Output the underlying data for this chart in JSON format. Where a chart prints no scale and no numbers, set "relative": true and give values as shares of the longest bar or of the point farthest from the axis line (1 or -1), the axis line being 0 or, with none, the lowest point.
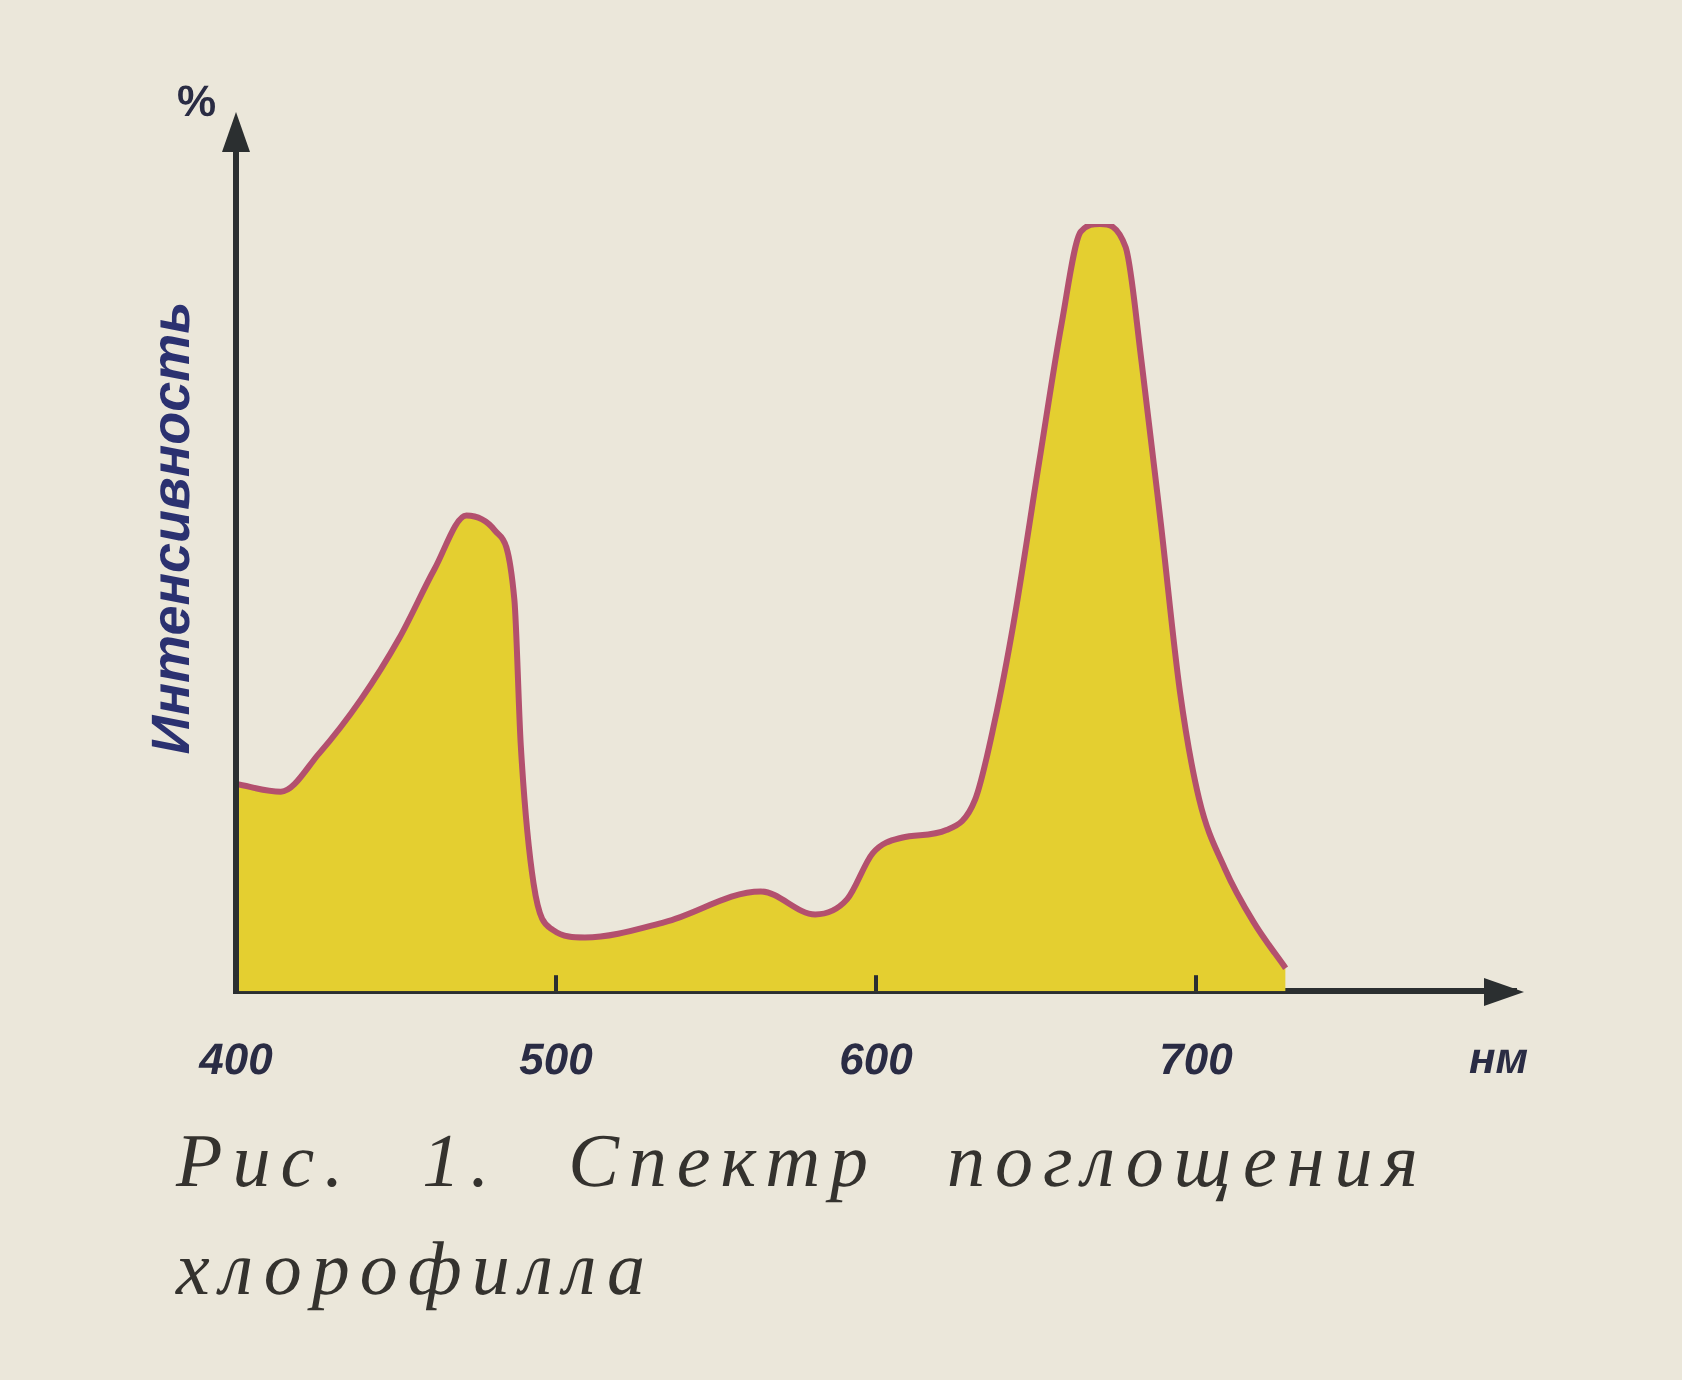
{
  "chart_data": {
    "type": "area",
    "title": "Рис. 1. Спектр поглощения хлорофилла",
    "xlabel": "нм",
    "ylabel": "Интенсивность",
    "annotations": [
      "%"
    ],
    "x": [
      400,
      414,
      426,
      439,
      451,
      462,
      472,
      481,
      487,
      489,
      493,
      499,
      509,
      534,
      564,
      581,
      591,
      599,
      608,
      622,
      631,
      637,
      643,
      651,
      658,
      664,
      670,
      678,
      683,
      689,
      695,
      701,
      709,
      718,
      728
    ],
    "series": [
      {
        "color": "#e4cf30",
        "values": [
          0.27,
          0.26,
          0.31,
          0.38,
          0.46,
          0.55,
          0.62,
          0.6,
          0.51,
          0.32,
          0.14,
          0.08,
          0.07,
          0.09,
          0.13,
          0.1,
          0.12,
          0.18,
          0.2,
          0.21,
          0.25,
          0.35,
          0.48,
          0.69,
          0.87,
          0.99,
          1,
          0.97,
          0.82,
          0.61,
          0.39,
          0.25,
          0.16,
          0.09,
          0.03
        ]
      }
    ],
    "xlim": [
      400,
      800
    ],
    "xticks": [
      400,
      500,
      600,
      700
    ],
    "relative": true,
    "grid": false,
    "legend": false,
    "marker": "none"
  }
}
